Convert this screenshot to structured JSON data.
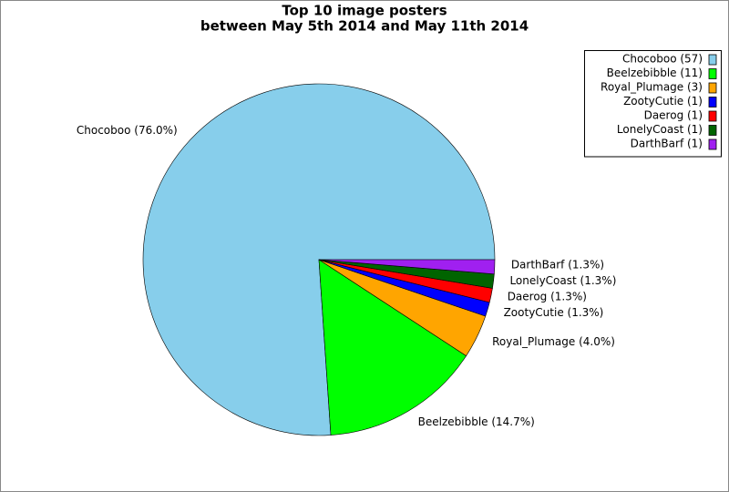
{
  "chart_data": {
    "type": "pie",
    "title": "Top 10 image posters",
    "subtitle": "between May 5th 2014 and May 11th 2014",
    "categories": [
      "Chocoboo (57)",
      "Beelzebibble (11)",
      "Royal_Plumage (3)",
      "ZootyCutie (1)",
      "Daerog (1)",
      "LonelyCoast (1)",
      "DarthBarf (1)"
    ],
    "values": [
      76.0,
      14.7,
      4.0,
      1.3,
      1.3,
      1.3,
      1.3
    ],
    "value_labels": [
      "Chocoboo (76.0%)",
      "Beelzebibble (14.7%)",
      "Royal_Plumage (4.0%)",
      "ZootyCutie (1.3%)",
      "Daerog (1.3%)",
      "LonelyCoast (1.3%)",
      "DarthBarf (1.3%)"
    ],
    "colors": [
      "#87ceeb",
      "#00ff00",
      "#ffa500",
      "#0000ff",
      "#ff0000",
      "#006400",
      "#a020f0"
    ],
    "legend": "upper right"
  }
}
